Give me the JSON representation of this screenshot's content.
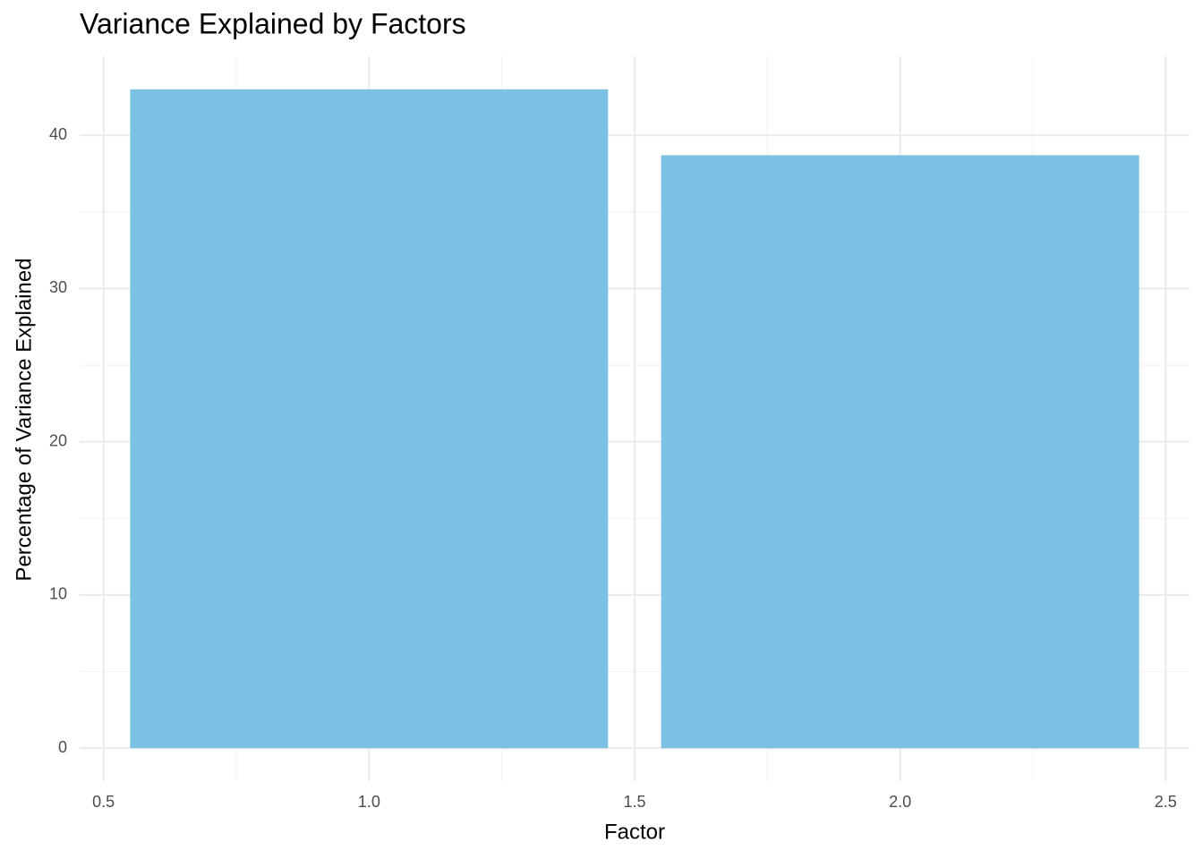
{
  "chart_data": {
    "type": "bar",
    "title": "Variance Explained by Factors",
    "x_label": "Factor",
    "y_label": "Percentage of Variance Explained",
    "x": [
      1,
      2
    ],
    "values": [
      43.0,
      38.7
    ],
    "color": "#7ac1e3",
    "xlim": [
      0.455,
      2.545
    ],
    "ylim": [
      -2.15,
      45.15
    ],
    "xticks": [
      0.5,
      {
        "value": 1,
        "label": "1.0"
      },
      1.5,
      {
        "value": 2,
        "label": "2.0"
      },
      2.5
    ],
    "yticks": [
      0,
      10,
      20,
      30,
      40
    ],
    "xminor": [
      0.75,
      1.25,
      1.75,
      2.25
    ],
    "yminor": [
      5,
      15,
      25,
      35
    ],
    "grid": true
  }
}
